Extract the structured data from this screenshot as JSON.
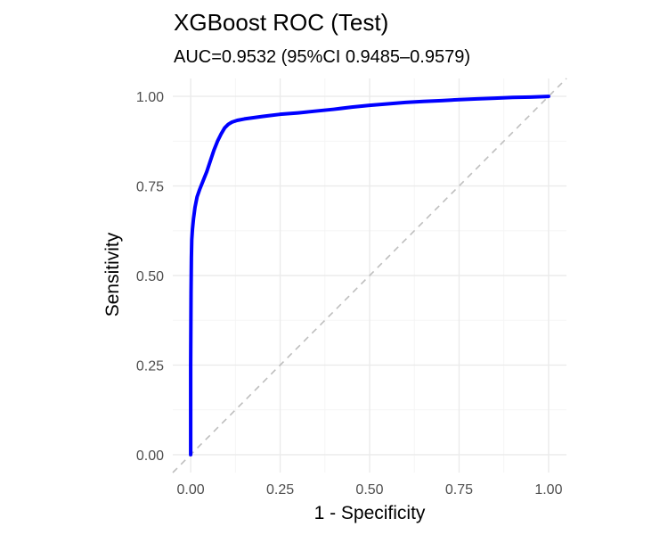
{
  "chart_data": {
    "type": "line",
    "title": "XGBoost ROC (Test)",
    "subtitle": "AUC=0.9532 (95%CI 0.9485–0.9579)",
    "xlabel": "1 - Specificity",
    "ylabel": "Sensitivity",
    "xlim": [
      -0.05,
      1.05
    ],
    "ylim": [
      -0.05,
      1.05
    ],
    "xticks": [
      0,
      0.25,
      0.5,
      0.75,
      1
    ],
    "xtick_labels": [
      "0.00",
      "0.25",
      "0.50",
      "0.75",
      "1.00"
    ],
    "yticks": [
      0,
      0.25,
      0.5,
      0.75,
      1
    ],
    "ytick_labels": [
      "0.00",
      "0.25",
      "0.50",
      "0.75",
      "1.00"
    ],
    "grid": true,
    "reference_line": {
      "x": [
        0,
        1
      ],
      "y": [
        0,
        1
      ],
      "color": "#bebebe",
      "style": "dashed"
    },
    "series": [
      {
        "color": "#0000ff",
        "x": [
          0,
          0,
          0.001,
          0.002,
          0.003,
          0.005,
          0.008,
          0.012,
          0.018,
          0.025,
          0.035,
          0.045,
          0.055,
          0.065,
          0.075,
          0.085,
          0.095,
          0.105,
          0.115,
          0.13,
          0.15,
          0.2,
          0.25,
          0.3,
          0.35,
          0.4,
          0.45,
          0.5,
          0.55,
          0.6,
          0.65,
          0.7,
          0.75,
          0.8,
          0.85,
          0.9,
          0.95,
          1
        ],
        "y": [
          0,
          0.25,
          0.45,
          0.55,
          0.6,
          0.63,
          0.66,
          0.69,
          0.72,
          0.74,
          0.765,
          0.79,
          0.82,
          0.85,
          0.875,
          0.895,
          0.912,
          0.922,
          0.928,
          0.933,
          0.937,
          0.944,
          0.95,
          0.954,
          0.959,
          0.964,
          0.97,
          0.975,
          0.979,
          0.983,
          0.986,
          0.988,
          0.991,
          0.993,
          0.995,
          0.997,
          0.998,
          1
        ]
      }
    ]
  }
}
